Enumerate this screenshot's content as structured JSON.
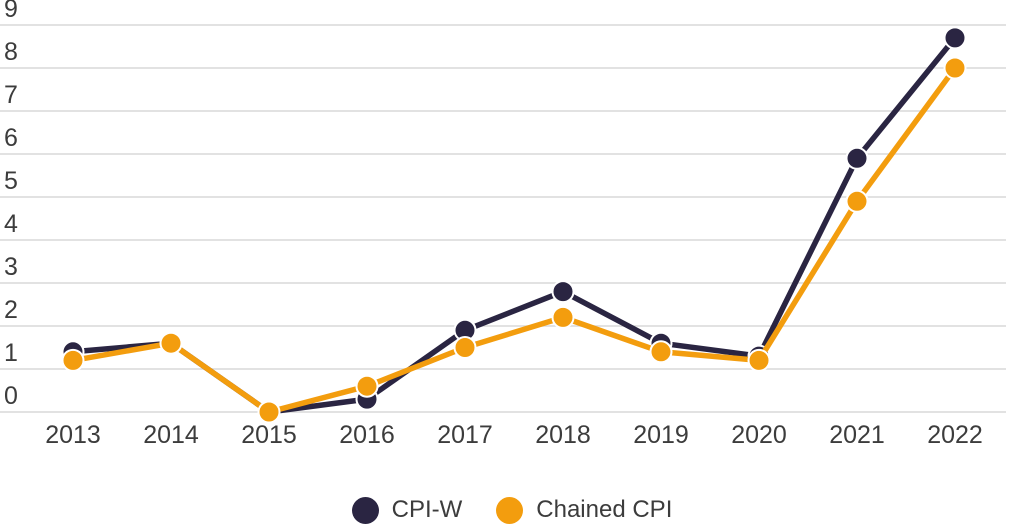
{
  "chart_data": {
    "type": "line",
    "title": "",
    "xlabel": "",
    "ylabel": "",
    "x": [
      "2013",
      "2014",
      "2015",
      "2016",
      "2017",
      "2018",
      "2019",
      "2020",
      "2021",
      "2022"
    ],
    "series": [
      {
        "name": "CPI-W",
        "color": "#2a2542",
        "values": [
          1.4,
          1.6,
          0.0,
          0.3,
          1.9,
          2.8,
          1.6,
          1.3,
          5.9,
          8.7
        ]
      },
      {
        "name": "Chained CPI",
        "color": "#f39d0e",
        "values": [
          1.2,
          1.6,
          0.0,
          0.6,
          1.5,
          2.2,
          1.4,
          1.2,
          4.9,
          8.0
        ]
      }
    ],
    "ylim": [
      0,
      9
    ],
    "yticks": [
      0,
      1,
      2,
      3,
      4,
      5,
      6,
      7,
      8,
      9
    ],
    "grid": true,
    "legend_position": "bottom"
  },
  "colors": {
    "gridline": "#d9d9d9",
    "tick_text": "#3c3c3c",
    "point_outline": "#ffffff",
    "background": "#ffffff"
  }
}
